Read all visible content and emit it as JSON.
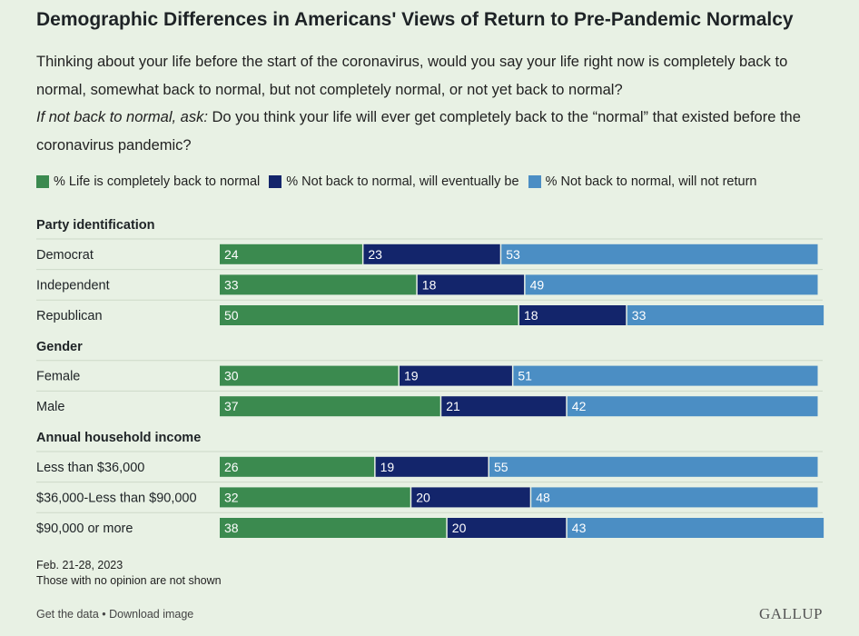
{
  "title": "Demographic Differences in Americans' Views of Return to Pre-Pandemic Normalcy",
  "question": {
    "line1": "Thinking about your life before the start of the coronavirus, would you say your life right now is completely back to normal, somewhat back to normal, but not completely normal, or not yet back to normal?",
    "followup_lead": "If not back to normal, ask:",
    "followup": " Do you think your life will ever get completely back to the “normal” that existed before the coronavirus pandemic?"
  },
  "colors": {
    "complete": "#3b8a4f",
    "eventually": "#13256b",
    "not_return": "#4b8ec4",
    "background": "#e8f1e4"
  },
  "chart_data": {
    "type": "bar",
    "orientation": "horizontal",
    "stacked": true,
    "series": [
      {
        "name": "% Life is completely back to normal",
        "color": "#3b8a4f"
      },
      {
        "name": "% Not back to normal, will eventually be",
        "color": "#13256b"
      },
      {
        "name": "% Not back to normal, will not return",
        "color": "#4b8ec4"
      }
    ],
    "groups": [
      {
        "label": "Party identification",
        "rows": [
          {
            "label": "Democrat",
            "values": [
              24,
              23,
              53
            ]
          },
          {
            "label": "Independent",
            "values": [
              33,
              18,
              49
            ]
          },
          {
            "label": "Republican",
            "values": [
              50,
              18,
              33
            ]
          }
        ]
      },
      {
        "label": "Gender",
        "rows": [
          {
            "label": "Female",
            "values": [
              30,
              19,
              51
            ]
          },
          {
            "label": "Male",
            "values": [
              37,
              21,
              42
            ]
          }
        ]
      },
      {
        "label": "Annual household income",
        "rows": [
          {
            "label": "Less than $36,000",
            "values": [
              26,
              19,
              55
            ]
          },
          {
            "label": "$36,000-Less than $90,000",
            "values": [
              32,
              20,
              48
            ]
          },
          {
            "label": "$90,000 or more",
            "values": [
              38,
              20,
              43
            ]
          }
        ]
      }
    ]
  },
  "footer": {
    "date": "Feb. 21-28, 2023",
    "note": "Those with no opinion are not shown"
  },
  "links": {
    "get_data": "Get the data",
    "separator": " • ",
    "download": "Download image"
  },
  "brand": "GALLUP"
}
